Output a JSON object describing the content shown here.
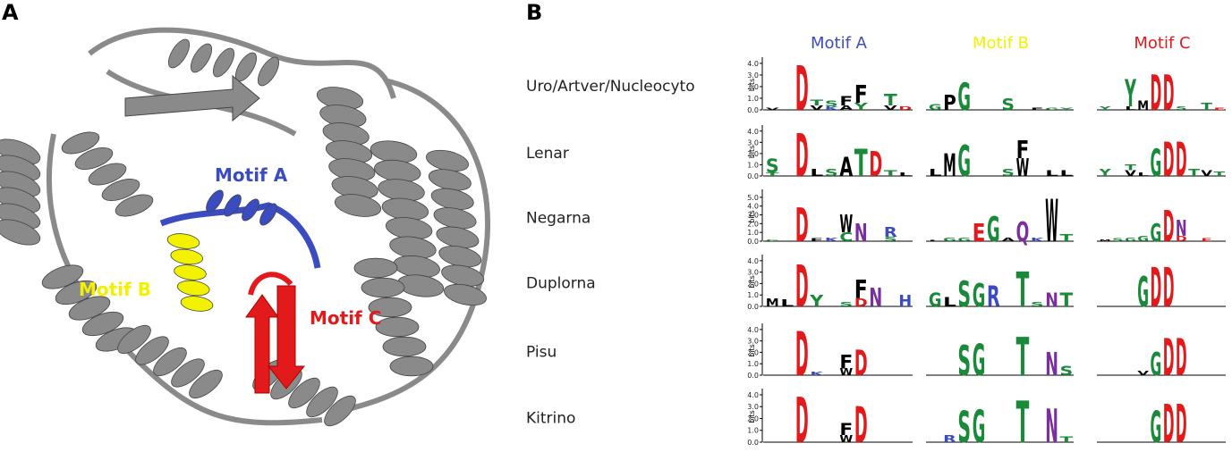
{
  "panel_a": {
    "label": "A",
    "motif_labels": [
      "Motif A",
      "Motif B",
      "Motif C"
    ]
  },
  "panel_b": {
    "label": "B",
    "headers": [
      "Motif A",
      "Motif B",
      "Motif C"
    ],
    "axis_label": "bits",
    "header_colors": [
      "#3b4cc0",
      "#f2f200",
      "#e31a1c"
    ],
    "letter_colors": {
      "D": "#e31a1c",
      "E": "#e31a1c",
      "K": "#3b4cc0",
      "R": "#3b4cc0",
      "H": "#3b4cc0",
      "N": "#7b2f9e",
      "Q": "#7b2f9e",
      "G": "#1a8a3a",
      "S": "#1a8a3a",
      "T": "#1a8a3a",
      "Y": "#1a8a3a",
      "C": "#1a8a3a",
      "A": "#000000",
      "V": "#000000",
      "L": "#000000",
      "I": "#000000",
      "P": "#000000",
      "W": "#000000",
      "F": "#000000",
      "M": "#000000"
    },
    "rows": [
      {
        "name": "Uro/Artver/Nucleocyto",
        "ylim": [
          0,
          4.3
        ],
        "yticks": [
          {
            "value": 0,
            "label": "0.0"
          },
          {
            "value": 1,
            "label": "1.0"
          },
          {
            "value": 2,
            "label": "2.0"
          },
          {
            "value": 3,
            "label": "3.0"
          },
          {
            "value": 4,
            "label": "4.0"
          }
        ],
        "motifs": [
          [
            [
              [
                "V",
                0.2
              ]
            ],
            [],
            [
              [
                "D",
                3.8
              ]
            ],
            [
              [
                "V",
                0.4
              ],
              [
                "T",
                0.5
              ]
            ],
            [
              [
                "K",
                0.3
              ],
              [
                "S",
                0.5
              ]
            ],
            [
              [
                "A",
                0.4
              ],
              [
                "F",
                0.8
              ]
            ],
            [
              [
                "Y",
                0.6
              ],
              [
                "F",
                1.5
              ]
            ],
            [],
            [
              [
                "V",
                0.4
              ],
              [
                "T",
                1.0
              ]
            ],
            [
              [
                "D",
                0.3
              ]
            ]
          ],
          [
            [
              [
                "G",
                0.5
              ]
            ],
            [
              [
                "P",
                1.3
              ]
            ],
            [
              [
                "G",
                2.3
              ]
            ],
            [],
            [],
            [
              [
                "S",
                1.0
              ]
            ],
            [],
            [
              [
                "F",
                0.2
              ]
            ],
            [
              [
                "G",
                0.2
              ]
            ],
            [
              [
                "Y",
                0.2
              ]
            ]
          ],
          [
            [
              [
                "Y",
                0.3
              ]
            ],
            [],
            [
              [
                "L",
                0.3
              ],
              [
                "Y",
                2.3
              ]
            ],
            [
              [
                "M",
                0.8
              ]
            ],
            [
              [
                "D",
                3.0
              ]
            ],
            [
              [
                "D",
                3.0
              ]
            ],
            [
              [
                "S",
                0.3
              ]
            ],
            [],
            [
              [
                "T",
                0.6
              ]
            ],
            [
              [
                "E",
                0.2
              ]
            ]
          ]
        ]
      },
      {
        "name": "Lenar",
        "ylim": [
          0,
          4.3
        ],
        "yticks": [
          {
            "value": 0,
            "label": "0.0"
          },
          {
            "value": 1,
            "label": "1.0"
          },
          {
            "value": 2,
            "label": "2.0"
          },
          {
            "value": 3,
            "label": "3.0"
          },
          {
            "value": 4,
            "label": "4.0"
          }
        ],
        "motifs": [
          [
            [
              [
                "T",
                0.3
              ],
              [
                "S",
                1.2
              ]
            ],
            [],
            [
              [
                "D",
                3.8
              ]
            ],
            [
              [
                "L",
                0.6
              ]
            ],
            [
              [
                "S",
                0.6
              ]
            ],
            [
              [
                "A",
                1.7
              ]
            ],
            [
              [
                "T",
                2.4
              ]
            ],
            [
              [
                "D",
                2.2
              ]
            ],
            [
              [
                "T",
                0.5
              ]
            ],
            [
              [
                "L",
                0.3
              ]
            ]
          ],
          [
            [
              [
                "L",
                0.6
              ]
            ],
            [
              [
                "M",
                2.0
              ]
            ],
            [
              [
                "G",
                2.7
              ]
            ],
            [],
            [],
            [
              [
                "S",
                0.6
              ]
            ],
            [
              [
                "W",
                1.6
              ],
              [
                "F",
                1.6
              ]
            ],
            [],
            [
              [
                "L",
                0.5
              ]
            ],
            [
              [
                "L",
                0.5
              ]
            ]
          ],
          [
            [
              [
                "Y",
                0.6
              ]
            ],
            [],
            [
              [
                "V",
                0.5
              ],
              [
                "T",
                0.5
              ]
            ],
            [
              [
                "L",
                0.3
              ]
            ],
            [
              [
                "G",
                2.4
              ]
            ],
            [
              [
                "D",
                3.0
              ]
            ],
            [
              [
                "D",
                3.0
              ]
            ],
            [
              [
                "T",
                0.6
              ]
            ],
            [
              [
                "V",
                0.5
              ]
            ],
            [
              [
                "T",
                0.4
              ]
            ]
          ]
        ]
      },
      {
        "name": "Negarna",
        "ylim": [
          0,
          5.6
        ],
        "yticks": [
          {
            "value": 0,
            "label": "0.0"
          },
          {
            "value": 1,
            "label": "1.0"
          },
          {
            "value": 2,
            "label": "2.0"
          },
          {
            "value": 3,
            "label": "3.0"
          },
          {
            "value": 4,
            "label": "4.0"
          },
          {
            "value": 5,
            "label": "5.0"
          }
        ],
        "motifs": [
          [
            [
              [
                "G",
                0.2
              ]
            ],
            [],
            [
              [
                "D",
                3.8
              ]
            ],
            [
              [
                "F",
                0.3
              ]
            ],
            [
              [
                "K",
                0.4
              ]
            ],
            [
              [
                "C",
                1.0
              ],
              [
                "W",
                2.0
              ]
            ],
            [
              [
                "N",
                2.0
              ]
            ],
            [],
            [
              [
                "S",
                0.5
              ],
              [
                "R",
                1.1
              ]
            ],
            []
          ],
          [
            [
              [
                "L",
                0.1
              ]
            ],
            [
              [
                "G",
                0.4
              ]
            ],
            [
              [
                "G",
                0.4
              ]
            ],
            [
              [
                "E",
                2.0
              ]
            ],
            [
              [
                "G",
                2.8
              ]
            ],
            [
              [
                "A",
                0.4
              ]
            ],
            [
              [
                "Q",
                2.2
              ]
            ],
            [
              [
                "K",
                0.4
              ]
            ],
            [
              [
                "W",
                4.8
              ]
            ],
            [
              [
                "T",
                0.8
              ]
            ]
          ],
          [
            [
              [
                "M",
                0.2
              ]
            ],
            [
              [
                "S",
                0.3
              ]
            ],
            [
              [
                "G",
                0.4
              ]
            ],
            [
              [
                "G",
                0.6
              ]
            ],
            [
              [
                "G",
                2.0
              ]
            ],
            [
              [
                "D",
                3.5
              ]
            ],
            [
              [
                "D",
                0.6
              ],
              [
                "N",
                1.8
              ]
            ],
            [],
            [
              [
                "E",
                0.3
              ]
            ],
            []
          ]
        ]
      },
      {
        "name": "Duplorna",
        "ylim": [
          0,
          4.3
        ],
        "yticks": [
          {
            "value": 0,
            "label": "0.0"
          },
          {
            "value": 1,
            "label": "1.0"
          },
          {
            "value": 2,
            "label": "2.0"
          },
          {
            "value": 3,
            "label": "3.0"
          },
          {
            "value": 4,
            "label": "4.0"
          }
        ],
        "motifs": [
          [
            [
              [
                "M",
                0.7
              ]
            ],
            [
              [
                "L",
                0.6
              ]
            ],
            [
              [
                "D",
                3.6
              ]
            ],
            [
              [
                "Y",
                1.0
              ]
            ],
            [],
            [
              [
                "S",
                0.4
              ]
            ],
            [
              [
                "D",
                0.7
              ],
              [
                "F",
                1.6
              ]
            ],
            [
              [
                "N",
                1.6
              ]
            ],
            [],
            [
              [
                "H",
                1.0
              ]
            ]
          ],
          [
            [
              [
                "G",
                1.2
              ]
            ],
            [
              [
                "L",
                0.8
              ]
            ],
            [
              [
                "S",
                2.2
              ]
            ],
            [
              [
                "G",
                2.0
              ]
            ],
            [
              [
                "R",
                1.8
              ]
            ],
            [],
            [
              [
                "T",
                3.0
              ]
            ],
            [
              [
                "S",
                0.4
              ]
            ],
            [
              [
                "N",
                1.2
              ]
            ],
            [
              [
                "T",
                1.2
              ]
            ]
          ],
          [
            [],
            [],
            [],
            [
              [
                "G",
                2.6
              ]
            ],
            [
              [
                "D",
                3.4
              ]
            ],
            [
              [
                "D",
                3.4
              ]
            ],
            [],
            [],
            [],
            []
          ]
        ]
      },
      {
        "name": "Pisu",
        "ylim": [
          0,
          4.3
        ],
        "yticks": [
          {
            "value": 0,
            "label": "0.0"
          },
          {
            "value": 1,
            "label": "1.0"
          },
          {
            "value": 2,
            "label": "2.0"
          },
          {
            "value": 3,
            "label": "3.0"
          },
          {
            "value": 4,
            "label": "4.0"
          }
        ],
        "motifs": [
          [
            [],
            [],
            [
              [
                "D",
                3.8
              ]
            ],
            [
              [
                "K",
                0.3
              ]
            ],
            [],
            [
              [
                "W",
                0.6
              ],
              [
                "F",
                1.2
              ]
            ],
            [
              [
                "D",
                2.2
              ]
            ],
            [],
            [],
            []
          ],
          [
            [],
            [],
            [
              [
                "S",
                2.6
              ]
            ],
            [
              [
                "G",
                2.7
              ]
            ],
            [],
            [],
            [
              [
                "T",
                3.3
              ]
            ],
            [],
            [
              [
                "N",
                2.0
              ]
            ],
            [
              [
                "S",
                0.8
              ]
            ]
          ],
          [
            [],
            [],
            [],
            [
              [
                "V",
                0.4
              ]
            ],
            [
              [
                "G",
                2.0
              ]
            ],
            [
              [
                "D",
                3.2
              ]
            ],
            [
              [
                "D",
                3.2
              ]
            ],
            [],
            [],
            []
          ]
        ]
      },
      {
        "name": "Kitrino",
        "ylim": [
          0,
          4.3
        ],
        "yticks": [
          {
            "value": 0,
            "label": "0.0"
          },
          {
            "value": 1,
            "label": "1.0"
          },
          {
            "value": 2,
            "label": "2.0"
          },
          {
            "value": 3,
            "label": "3.0"
          },
          {
            "value": 4,
            "label": "4.0"
          }
        ],
        "motifs": [
          [
            [],
            [],
            [
              [
                "D",
                3.8
              ]
            ],
            [],
            [],
            [
              [
                "W",
                0.6
              ],
              [
                "F",
                1.0
              ]
            ],
            [
              [
                "D",
                3.0
              ]
            ],
            [],
            [],
            []
          ],
          [
            [],
            [
              [
                "R",
                0.6
              ]
            ],
            [
              [
                "S",
                2.6
              ]
            ],
            [
              [
                "G",
                2.7
              ]
            ],
            [],
            [],
            [
              [
                "T",
                3.5
              ]
            ],
            [],
            [
              [
                "N",
                2.8
              ]
            ],
            [
              [
                "T",
                0.5
              ]
            ]
          ],
          [
            [],
            [],
            [],
            [],
            [
              [
                "G",
                2.6
              ]
            ],
            [
              [
                "D",
                3.2
              ]
            ],
            [
              [
                "D",
                3.2
              ]
            ],
            [],
            [],
            []
          ]
        ]
      }
    ]
  }
}
